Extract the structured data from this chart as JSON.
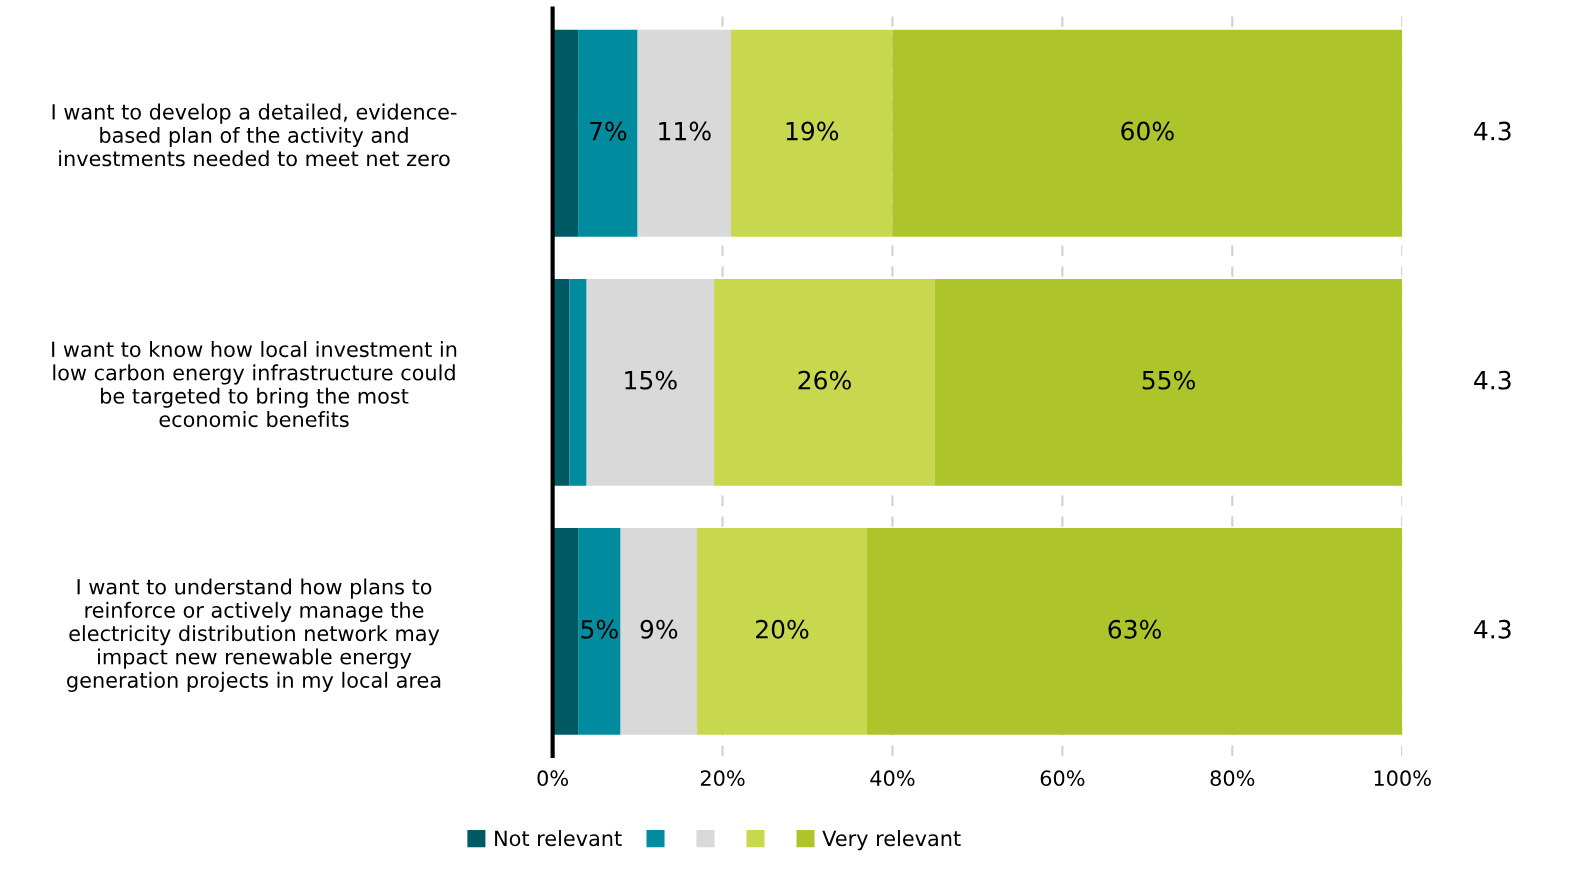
{
  "chart_data": {
    "type": "bar",
    "orientation": "horizontal",
    "stacked": true,
    "categories": [
      "I want to develop a detailed, evidence-\nbased plan of the activity and\ninvestments needed to meet net zero",
      "I want to know how local investment in\nlow carbon energy infrastructure could\nbe targeted to bring the most\neconomic benefits",
      "I want to understand how plans to\nreinforce or actively manage the\nelectricity distribution network may\nimpact new renewable energy\ngeneration projects in my local area"
    ],
    "series": [
      {
        "name": "Not relevant",
        "color": "#005a64",
        "values": [
          3,
          2,
          3
        ],
        "value_labels": [
          null,
          null,
          null
        ]
      },
      {
        "color": "#008c9e",
        "values": [
          7,
          2,
          5
        ],
        "value_labels": [
          "7%",
          null,
          "5%"
        ]
      },
      {
        "color": "#d9d9d9",
        "values": [
          11,
          15,
          9
        ],
        "value_labels": [
          "11%",
          "15%",
          "9%"
        ]
      },
      {
        "color": "#c8d84e",
        "values": [
          19,
          26,
          20
        ],
        "value_labels": [
          "19%",
          "26%",
          "20%"
        ]
      },
      {
        "name": "Very relevant",
        "color": "#adc42b",
        "values": [
          60,
          55,
          63
        ],
        "value_labels": [
          "60%",
          "55%",
          "63%"
        ]
      }
    ],
    "xlim": [
      0,
      100
    ],
    "xticks": [
      {
        "value": 0,
        "label": "0%"
      },
      {
        "value": 20,
        "label": "20%"
      },
      {
        "value": 40,
        "label": "40%"
      },
      {
        "value": 60,
        "label": "60%"
      },
      {
        "value": 80,
        "label": "80%"
      },
      {
        "value": 100,
        "label": "100%"
      }
    ],
    "grid": "x",
    "legend": "bottom",
    "annotations": [
      "4.3",
      "4.3",
      "4.3"
    ]
  }
}
